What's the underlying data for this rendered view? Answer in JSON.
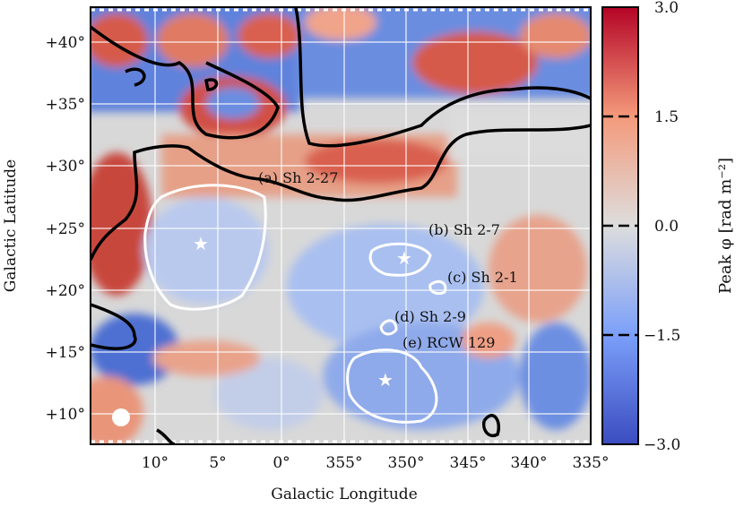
{
  "chart_data": {
    "type": "heatmap",
    "title": "",
    "xlabel": "Galactic Longitude",
    "ylabel": "Galactic Latitude",
    "xlim": [
      15.1,
      335
    ],
    "ylim": [
      7.5,
      42.8
    ],
    "x_ticks": [
      10,
      5,
      0,
      355,
      350,
      345,
      340,
      335
    ],
    "x_tick_labels": [
      "10°",
      "5°",
      "0°",
      "355°",
      "350°",
      "345°",
      "340°",
      "335°"
    ],
    "y_ticks": [
      40,
      35,
      30,
      25,
      20,
      15,
      10
    ],
    "y_tick_labels": [
      "+40°",
      "+35°",
      "+30°",
      "+25°",
      "+20°",
      "+15°",
      "+10°"
    ],
    "colorbar": {
      "label": "Peak φ [rad m⁻²]",
      "range": [
        -3.0,
        3.0
      ],
      "ticks": [
        3.0,
        1.5,
        0.0,
        -1.5,
        -3.0
      ],
      "tick_labels": [
        "3.0",
        "1.5",
        "0.0",
        "−1.5",
        "−3.0"
      ],
      "colormap": "coolwarm",
      "colors": {
        "low": "#3b4cc0",
        "mid": "#dddddd",
        "high": "#b40426"
      }
    },
    "annotations": [
      {
        "label": "(a) Sh 2-27",
        "l": 357.8,
        "b": 29.1
      },
      {
        "label": "(b) Sh 2-7",
        "l": 348.3,
        "b": 24.8
      },
      {
        "label": "(c) Sh 2-1",
        "l": 344.6,
        "b": 20.8
      },
      {
        "label": "(d) Sh 2-9",
        "l": 351.6,
        "b": 17.2
      },
      {
        "label": "(e) RCW 129",
        "l": 350.9,
        "b": 14.2
      }
    ],
    "region_centers": [
      {
        "name": "Sh 2-27",
        "l": 6.4,
        "b": 23.8
      },
      {
        "name": "Sh 2-7",
        "l": 349.9,
        "b": 22.6
      },
      {
        "name": "RCW 129",
        "l": 351.6,
        "b": 12.8
      }
    ]
  }
}
